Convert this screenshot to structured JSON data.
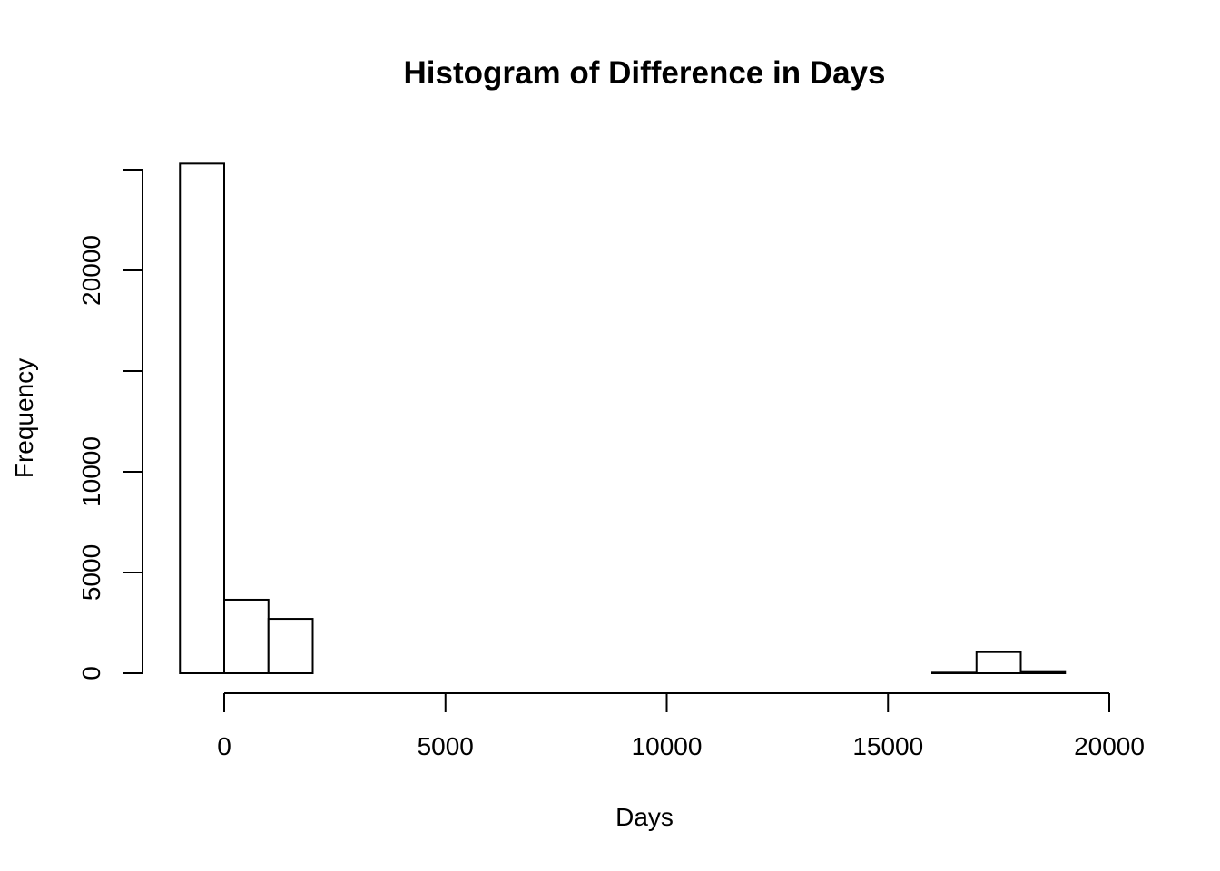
{
  "chart_data": {
    "type": "bar",
    "title": "Histogram of Difference in Days",
    "xlabel": "Days",
    "ylabel": "Frequency",
    "bin_width": 1000,
    "bins": [
      {
        "start": -1000,
        "end": 0,
        "count": 25300
      },
      {
        "start": 0,
        "end": 1000,
        "count": 3650
      },
      {
        "start": 1000,
        "end": 2000,
        "count": 2700
      },
      {
        "start": 2000,
        "end": 3000,
        "count": 0
      },
      {
        "start": 3000,
        "end": 4000,
        "count": 0
      },
      {
        "start": 4000,
        "end": 5000,
        "count": 0
      },
      {
        "start": 5000,
        "end": 6000,
        "count": 0
      },
      {
        "start": 6000,
        "end": 7000,
        "count": 0
      },
      {
        "start": 7000,
        "end": 8000,
        "count": 0
      },
      {
        "start": 8000,
        "end": 9000,
        "count": 0
      },
      {
        "start": 9000,
        "end": 10000,
        "count": 0
      },
      {
        "start": 10000,
        "end": 11000,
        "count": 0
      },
      {
        "start": 11000,
        "end": 12000,
        "count": 0
      },
      {
        "start": 12000,
        "end": 13000,
        "count": 0
      },
      {
        "start": 13000,
        "end": 14000,
        "count": 0
      },
      {
        "start": 14000,
        "end": 15000,
        "count": 0
      },
      {
        "start": 15000,
        "end": 16000,
        "count": 0
      },
      {
        "start": 16000,
        "end": 17000,
        "count": 30
      },
      {
        "start": 17000,
        "end": 18000,
        "count": 1050
      },
      {
        "start": 18000,
        "end": 19000,
        "count": 60
      }
    ],
    "xlim": [
      -1000,
      20000
    ],
    "ylim": [
      0,
      25300
    ],
    "x_ticks": [
      0,
      5000,
      10000,
      15000,
      20000
    ],
    "x_tick_labels": [
      "0",
      "5000",
      "10000",
      "15000",
      "20000"
    ],
    "y_ticks": [
      0,
      5000,
      10000,
      15000,
      20000,
      25000
    ],
    "y_tick_labels": [
      "0",
      "5000",
      "10000",
      "",
      "20000",
      ""
    ],
    "grid": false,
    "legend": "none"
  }
}
